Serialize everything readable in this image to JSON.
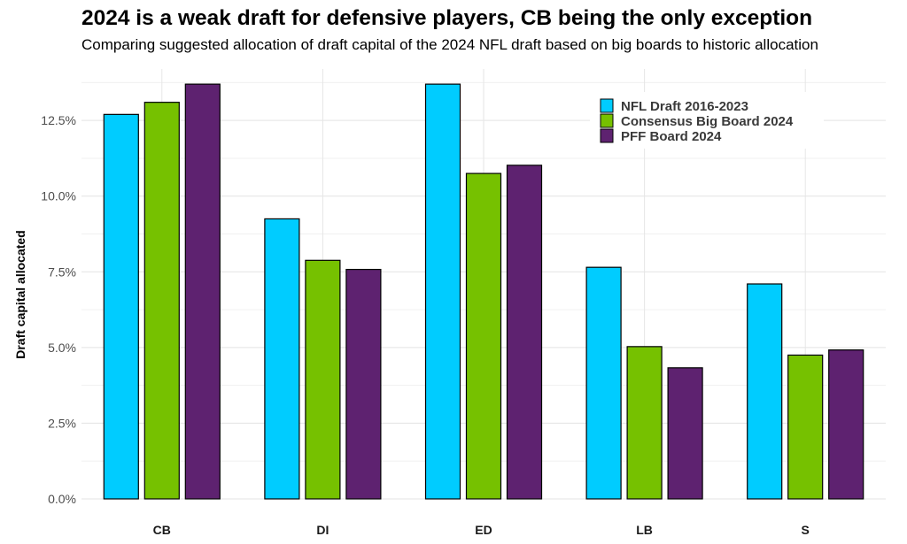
{
  "chart_data": {
    "type": "bar",
    "title": "2024 is a weak draft for defensive players, CB being the only exception",
    "subtitle": "Comparing suggested allocation of draft capital of the 2024 NFL draft based on big boards to historic allocation",
    "xlabel": "",
    "ylabel": "Draft capital allocated",
    "categories": [
      "CB",
      "DI",
      "ED",
      "LB",
      "S"
    ],
    "series": [
      {
        "name": "NFL Draft 2016-2023",
        "color": "#00CCFF",
        "values": [
          12.7,
          9.25,
          13.7,
          7.65,
          7.1
        ]
      },
      {
        "name": "Consensus Big Board 2024",
        "color": "#76C100",
        "values": [
          13.1,
          7.88,
          10.75,
          5.03,
          4.75
        ]
      },
      {
        "name": "PFF Board 2024",
        "color": "#5E2270",
        "values": [
          13.7,
          7.58,
          11.02,
          4.33,
          4.92
        ]
      }
    ],
    "ylim": [
      0,
      14.2
    ],
    "yticks": [
      0,
      2.5,
      5,
      7.5,
      10,
      12.5
    ],
    "ytick_labels": [
      "0.0%",
      "2.5%",
      "5.0%",
      "7.5%",
      "10.0%",
      "12.5%"
    ],
    "grid": true,
    "legend_position": "top-right"
  }
}
